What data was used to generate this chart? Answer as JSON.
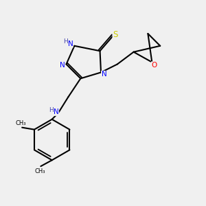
{
  "background_color": "#f0f0f0",
  "bond_color": "#000000",
  "atom_colors": {
    "N": "#0000ff",
    "S": "#cccc00",
    "O": "#ff0000",
    "C": "#000000",
    "H": "#4444aa"
  },
  "figsize": [
    3.0,
    3.0
  ],
  "dpi": 100
}
